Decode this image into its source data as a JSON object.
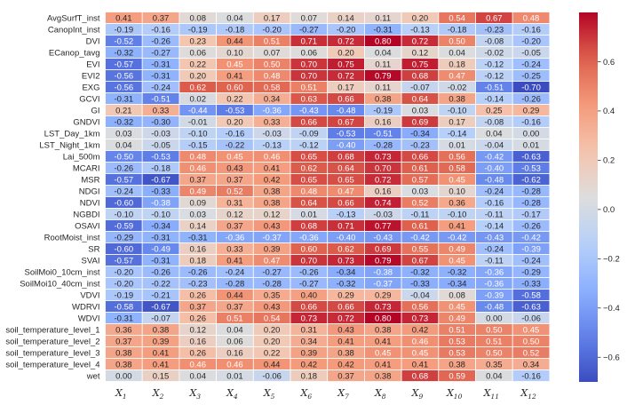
{
  "chart_data": {
    "type": "heatmap",
    "colormap": "coolwarm",
    "vmin": -0.7,
    "vmax": 0.8,
    "colorbar_ticks": [
      "0.6",
      "0.4",
      "0.2",
      "0.0",
      "−0.2",
      "−0.4",
      "−0.6"
    ],
    "colorbar_tick_values": [
      0.6,
      0.4,
      0.2,
      0.0,
      -0.2,
      -0.4,
      -0.6
    ],
    "columns": [
      {
        "base": "X",
        "sub": "1"
      },
      {
        "base": "X",
        "sub": "2"
      },
      {
        "base": "X",
        "sub": "3"
      },
      {
        "base": "X",
        "sub": "4"
      },
      {
        "base": "X",
        "sub": "5"
      },
      {
        "base": "X",
        "sub": "6"
      },
      {
        "base": "X",
        "sub": "7"
      },
      {
        "base": "X",
        "sub": "8"
      },
      {
        "base": "X",
        "sub": "9"
      },
      {
        "base": "X",
        "sub": "10"
      },
      {
        "base": "X",
        "sub": "11"
      },
      {
        "base": "X",
        "sub": "12"
      }
    ],
    "rows": [
      "AvgSurfT_inst",
      "CanopInt_inst",
      "DVI",
      "ECanop_tavg",
      "EVI",
      "EVI2",
      "EXG",
      "GCVI",
      "GI",
      "GNDVI",
      "LST_Day_1km",
      "LST_Night_1km",
      "Lai_500m",
      "MCARI",
      "MSR",
      "NDGI",
      "NDVI",
      "NGBDI",
      "OSAVI",
      "RootMoist_inst",
      "SR",
      "SVAI",
      "SoilMoi0_10cm_inst",
      "SoilMoi10_40cm_inst",
      "VDVI",
      "WDRVI",
      "WDVI",
      "soil_temperature_level_1",
      "soil_temperature_level_2",
      "soil_temperature_level_3",
      "soil_temperature_level_4",
      "wet"
    ],
    "values": [
      [
        0.41,
        0.37,
        0.08,
        0.04,
        0.17,
        0.07,
        0.14,
        0.11,
        0.2,
        0.54,
        0.67,
        0.48
      ],
      [
        -0.19,
        -0.16,
        -0.19,
        -0.18,
        -0.2,
        -0.27,
        -0.2,
        -0.31,
        -0.13,
        -0.18,
        -0.23,
        -0.16
      ],
      [
        -0.52,
        -0.26,
        0.23,
        0.44,
        0.51,
        0.71,
        0.72,
        0.8,
        0.72,
        0.5,
        -0.08,
        -0.2
      ],
      [
        -0.32,
        -0.27,
        0.06,
        0.1,
        0.07,
        0.06,
        0.2,
        0.04,
        0.12,
        0.04,
        -0.02,
        -0.05
      ],
      [
        -0.57,
        -0.31,
        0.22,
        0.45,
        0.5,
        0.7,
        0.75,
        0.11,
        0.75,
        0.18,
        -0.12,
        -0.24
      ],
      [
        -0.56,
        -0.31,
        0.2,
        0.41,
        0.48,
        0.7,
        0.72,
        0.79,
        0.68,
        0.47,
        -0.12,
        -0.25
      ],
      [
        -0.56,
        -0.24,
        0.62,
        0.6,
        0.58,
        0.51,
        0.17,
        0.11,
        -0.07,
        -0.02,
        -0.51,
        -0.7
      ],
      [
        -0.31,
        -0.51,
        0.02,
        0.22,
        0.34,
        0.63,
        0.66,
        0.38,
        0.64,
        0.38,
        -0.14,
        -0.26
      ],
      [
        0.21,
        0.33,
        -0.44,
        -0.53,
        -0.36,
        -0.43,
        -0.48,
        -0.19,
        0.03,
        -0.1,
        0.25,
        0.29
      ],
      [
        -0.32,
        -0.3,
        -0.01,
        0.2,
        0.33,
        0.66,
        0.67,
        0.16,
        0.69,
        0.17,
        -0.08,
        -0.16
      ],
      [
        0.03,
        -0.03,
        -0.1,
        -0.16,
        -0.03,
        -0.09,
        -0.53,
        -0.51,
        -0.34,
        -0.14,
        0.04,
        0.0
      ],
      [
        0.04,
        -0.05,
        -0.15,
        -0.22,
        -0.13,
        -0.12,
        -0.4,
        -0.28,
        -0.23,
        0.01,
        -0.04,
        0.01
      ],
      [
        -0.5,
        -0.53,
        0.48,
        0.45,
        0.46,
        0.65,
        0.68,
        0.73,
        0.66,
        0.56,
        -0.42,
        -0.63
      ],
      [
        -0.26,
        -0.18,
        0.46,
        0.43,
        0.41,
        0.62,
        0.64,
        0.7,
        0.61,
        0.58,
        -0.4,
        -0.53
      ],
      [
        -0.57,
        -0.67,
        0.37,
        0.37,
        0.42,
        0.65,
        0.65,
        0.72,
        0.57,
        0.45,
        -0.48,
        -0.62
      ],
      [
        -0.24,
        -0.33,
        0.49,
        0.52,
        0.38,
        0.48,
        0.47,
        0.16,
        0.03,
        0.1,
        -0.24,
        -0.28
      ],
      [
        -0.6,
        -0.38,
        0.09,
        0.31,
        0.38,
        0.64,
        0.66,
        0.74,
        0.52,
        0.36,
        -0.16,
        -0.28
      ],
      [
        -0.1,
        -0.1,
        0.03,
        0.12,
        0.12,
        0.01,
        -0.13,
        -0.03,
        -0.11,
        -0.1,
        -0.11,
        -0.17
      ],
      [
        -0.59,
        -0.34,
        0.14,
        0.37,
        0.43,
        0.68,
        0.71,
        0.77,
        0.61,
        0.41,
        -0.14,
        -0.26
      ],
      [
        -0.29,
        -0.31,
        -0.31,
        -0.36,
        -0.37,
        -0.36,
        -0.4,
        -0.43,
        -0.42,
        -0.42,
        -0.43,
        -0.42
      ],
      [
        -0.6,
        -0.49,
        0.16,
        0.33,
        0.39,
        0.6,
        0.62,
        0.69,
        0.55,
        0.49,
        -0.24,
        -0.39
      ],
      [
        -0.57,
        -0.31,
        0.18,
        0.41,
        0.47,
        0.7,
        0.73,
        0.79,
        0.67,
        0.45,
        -0.11,
        -0.24
      ],
      [
        -0.2,
        -0.26,
        -0.26,
        -0.24,
        -0.27,
        -0.26,
        -0.34,
        -0.38,
        -0.32,
        -0.32,
        -0.36,
        -0.29
      ],
      [
        -0.2,
        -0.22,
        -0.23,
        -0.28,
        -0.28,
        -0.27,
        -0.32,
        -0.37,
        -0.33,
        -0.34,
        -0.36,
        -0.33
      ],
      [
        -0.19,
        -0.21,
        0.26,
        0.44,
        0.35,
        0.4,
        0.29,
        0.29,
        -0.04,
        0.08,
        -0.39,
        -0.58
      ],
      [
        -0.58,
        -0.67,
        0.37,
        0.37,
        0.43,
        0.66,
        0.66,
        0.73,
        0.56,
        0.45,
        -0.48,
        -0.63
      ],
      [
        -0.31,
        -0.07,
        0.26,
        0.51,
        0.54,
        0.73,
        0.72,
        0.8,
        0.73,
        0.49,
        0.0,
        -0.06
      ],
      [
        0.36,
        0.38,
        0.12,
        0.04,
        0.2,
        0.31,
        0.43,
        0.38,
        0.42,
        0.51,
        0.5,
        0.45
      ],
      [
        0.37,
        0.39,
        0.16,
        0.06,
        0.2,
        0.34,
        0.41,
        0.41,
        0.46,
        0.53,
        0.51,
        0.5
      ],
      [
        0.38,
        0.41,
        0.26,
        0.16,
        0.22,
        0.39,
        0.38,
        0.45,
        0.45,
        0.53,
        0.5,
        0.52
      ],
      [
        0.38,
        0.41,
        0.46,
        0.46,
        0.44,
        0.42,
        0.42,
        0.41,
        0.41,
        0.38,
        0.35,
        0.34
      ],
      [
        0.0,
        0.15,
        0.04,
        0.01,
        -0.06,
        0.18,
        0.37,
        0.38,
        0.68,
        0.59,
        0.04,
        -0.16
      ]
    ]
  }
}
